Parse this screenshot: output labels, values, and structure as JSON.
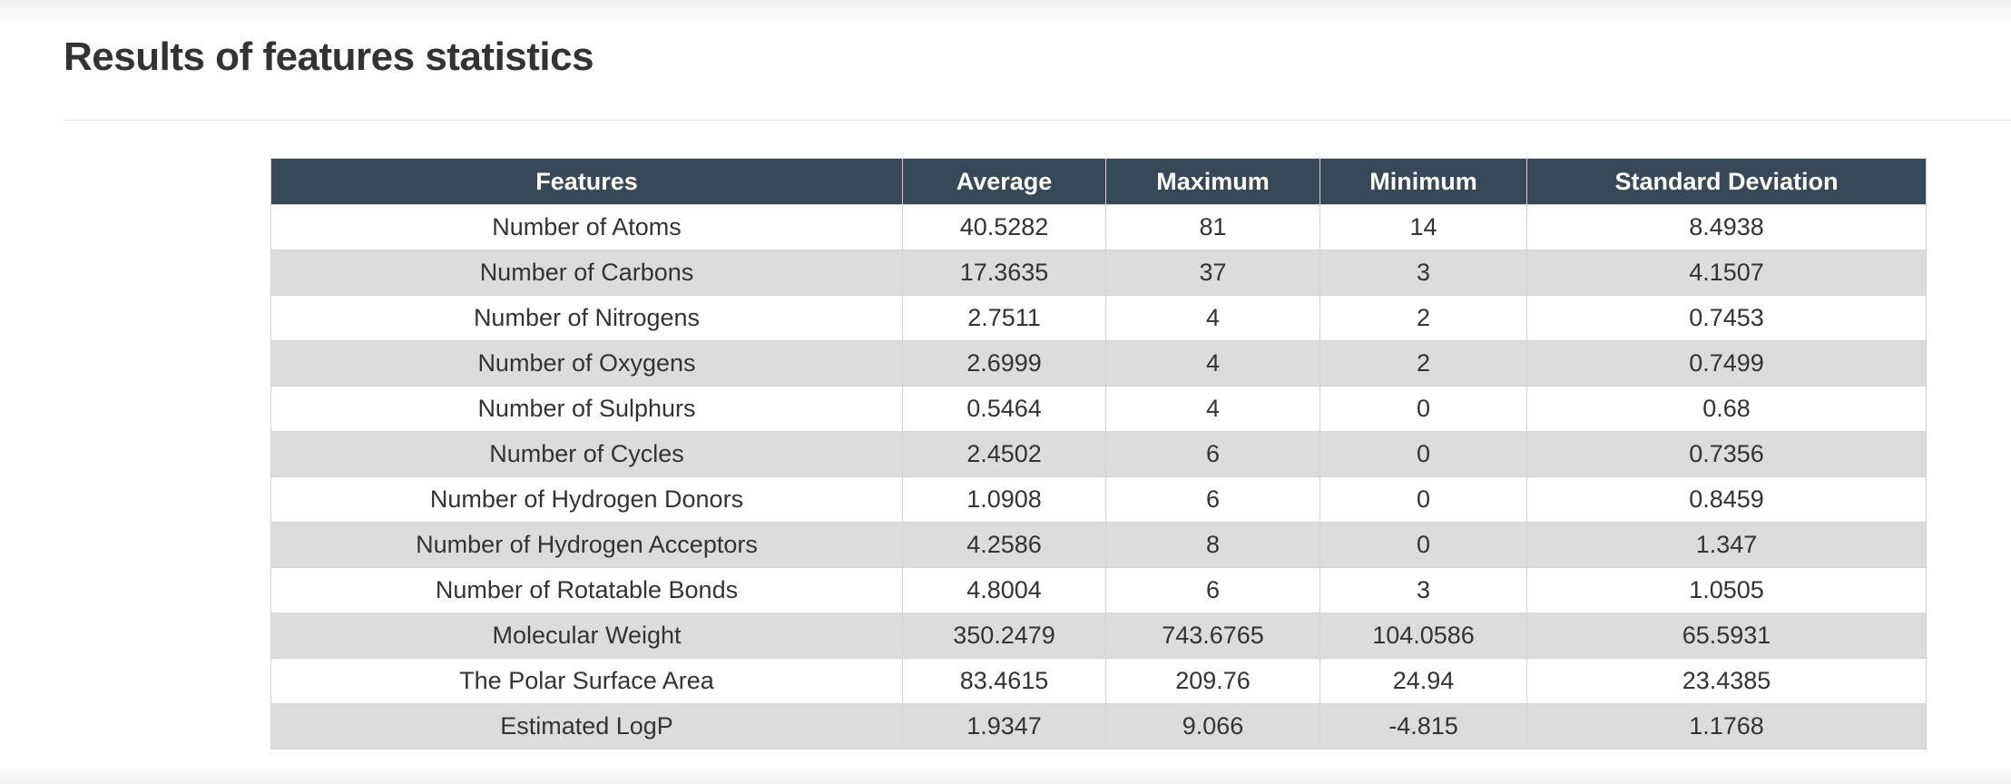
{
  "page": {
    "title": "Results of features statistics"
  },
  "colors": {
    "header_bg": "#374859",
    "header_text": "#ffffff",
    "row_alt_bg": "#dcdcdc",
    "row_bg": "#ffffff",
    "text": "#333333"
  },
  "table": {
    "headers": [
      "Features",
      "Average",
      "Maximum",
      "Minimum",
      "Standard Deviation"
    ],
    "rows": [
      [
        "Number of Atoms",
        "40.5282",
        "81",
        "14",
        "8.4938"
      ],
      [
        "Number of Carbons",
        "17.3635",
        "37",
        "3",
        "4.1507"
      ],
      [
        "Number of Nitrogens",
        "2.7511",
        "4",
        "2",
        "0.7453"
      ],
      [
        "Number of Oxygens",
        "2.6999",
        "4",
        "2",
        "0.7499"
      ],
      [
        "Number of Sulphurs",
        "0.5464",
        "4",
        "0",
        "0.68"
      ],
      [
        "Number of Cycles",
        "2.4502",
        "6",
        "0",
        "0.7356"
      ],
      [
        "Number of Hydrogen Donors",
        "1.0908",
        "6",
        "0",
        "0.8459"
      ],
      [
        "Number of Hydrogen Acceptors",
        "4.2586",
        "8",
        "0",
        "1.347"
      ],
      [
        "Number of Rotatable Bonds",
        "4.8004",
        "6",
        "3",
        "1.0505"
      ],
      [
        "Molecular Weight",
        "350.2479",
        "743.6765",
        "104.0586",
        "65.5931"
      ],
      [
        "The Polar Surface Area",
        "83.4615",
        "209.76",
        "24.94",
        "23.4385"
      ],
      [
        "Estimated LogP",
        "1.9347",
        "9.066",
        "-4.815",
        "1.1768"
      ]
    ]
  }
}
